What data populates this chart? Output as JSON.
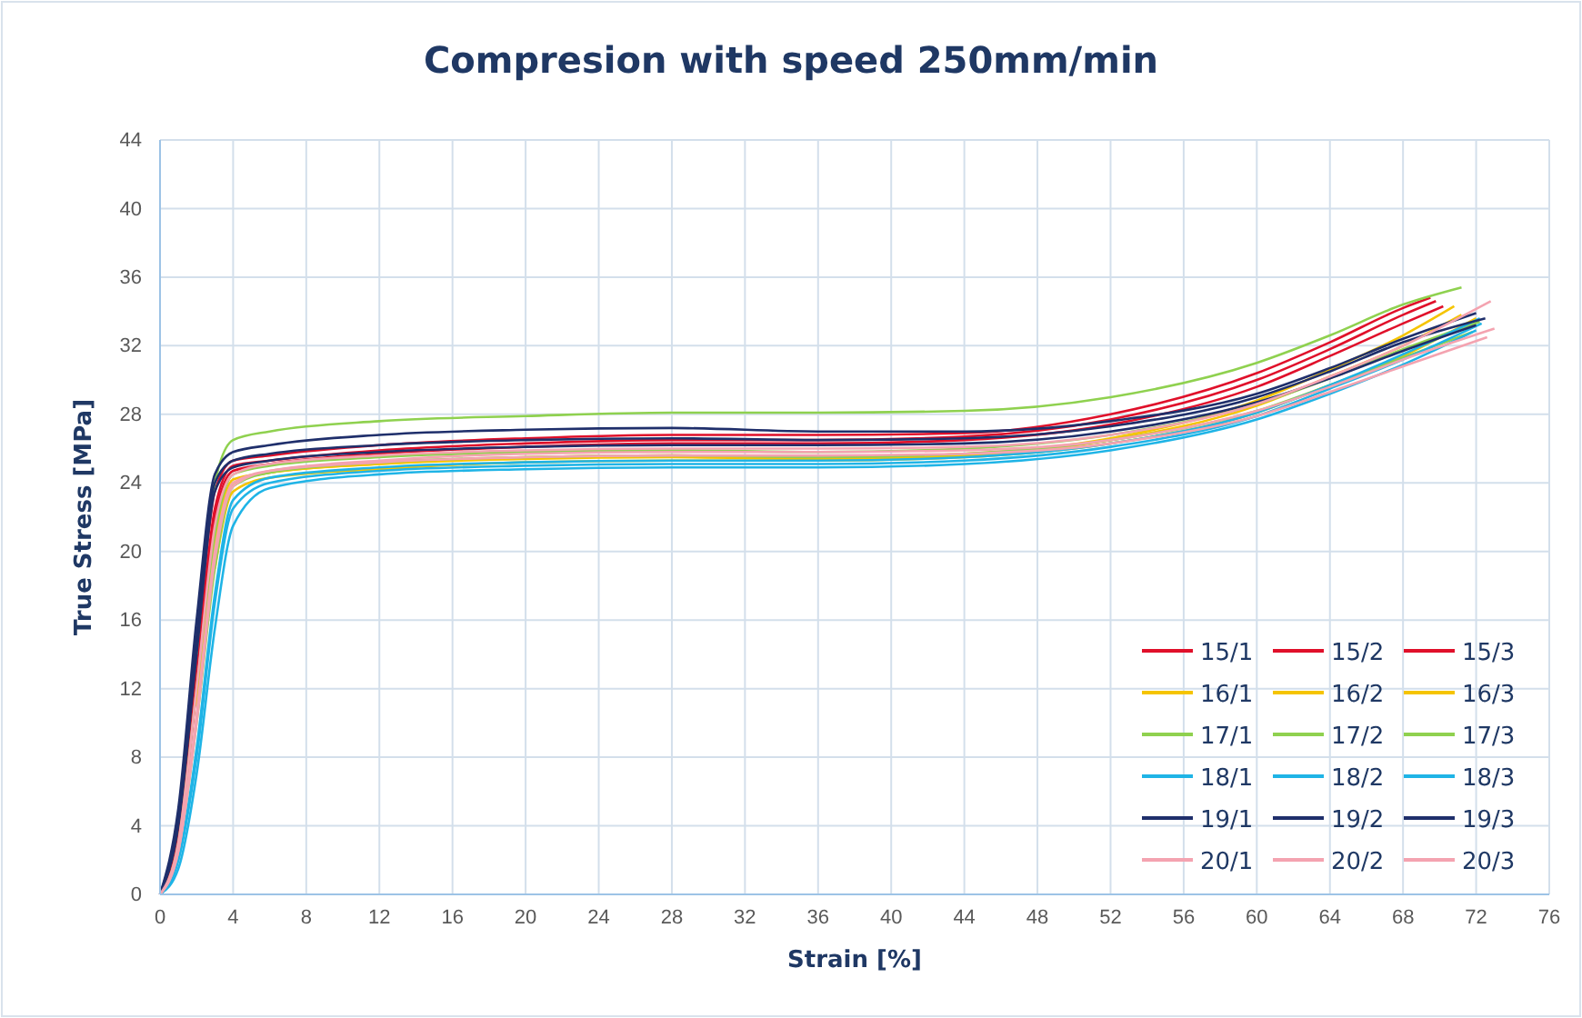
{
  "chart_data": {
    "type": "line",
    "title": "Compresion with speed 250mm/min",
    "xlabel": "Strain [%]",
    "ylabel": "True Stress [MPa]",
    "xlim": [
      0,
      76
    ],
    "xticks": [
      0,
      4,
      8,
      12,
      16,
      20,
      24,
      28,
      32,
      36,
      40,
      44,
      48,
      52,
      56,
      60,
      64,
      68,
      72,
      76
    ],
    "ylim": [
      0,
      44
    ],
    "yticks": [
      0,
      4,
      8,
      12,
      16,
      20,
      24,
      28,
      32,
      36,
      40,
      44
    ],
    "grid": true,
    "legend": "bottom right",
    "line_style": "solid",
    "marker": "none",
    "series": [
      {
        "name": "15/1",
        "color": "#e0102a",
        "x": [
          0,
          1,
          2,
          3,
          4,
          6,
          12,
          20,
          28,
          36,
          44,
          52,
          60,
          64,
          68,
          69.5
        ],
        "values": [
          0,
          4,
          14,
          23.5,
          25.3,
          25.6,
          26.2,
          26.6,
          26.8,
          26.8,
          26.9,
          28,
          30.4,
          32.2,
          34.2,
          34.8
        ]
      },
      {
        "name": "15/2",
        "color": "#e0102a",
        "x": [
          0,
          1,
          2,
          3,
          4,
          6,
          12,
          20,
          28,
          36,
          44,
          52,
          60,
          64,
          68,
          69.8
        ],
        "values": [
          0,
          3.5,
          13,
          22.5,
          25,
          25.3,
          25.9,
          26.3,
          26.5,
          26.5,
          26.7,
          27.7,
          30,
          31.8,
          33.8,
          34.6
        ]
      },
      {
        "name": "15/3",
        "color": "#e0102a",
        "x": [
          0,
          1,
          2,
          3,
          4,
          6,
          12,
          20,
          28,
          36,
          44,
          52,
          60,
          64,
          68,
          70.2
        ],
        "values": [
          0,
          3,
          12,
          22,
          24.7,
          25.1,
          25.7,
          26.1,
          26.3,
          26.3,
          26.5,
          27.4,
          29.6,
          31.4,
          33.3,
          34.3
        ]
      },
      {
        "name": "16/1",
        "color": "#f5c400",
        "x": [
          2,
          3,
          4,
          6,
          12,
          20,
          28,
          36,
          44,
          52,
          60,
          64,
          68,
          70.8
        ],
        "values": [
          11,
          20,
          24,
          24.6,
          25.1,
          25.5,
          25.6,
          25.5,
          25.7,
          26.6,
          28.8,
          30.6,
          32.6,
          34.3
        ]
      },
      {
        "name": "16/2",
        "color": "#f5c400",
        "x": [
          3,
          4,
          6,
          12,
          20,
          28,
          36,
          44,
          52,
          60,
          64,
          68,
          72
        ],
        "values": [
          19,
          23.5,
          24.3,
          24.8,
          25.2,
          25.3,
          25.3,
          25.5,
          26.3,
          28.1,
          29.7,
          31.4,
          33.6
        ]
      },
      {
        "name": "16/3",
        "color": "#f5c400",
        "x": [
          2,
          3,
          4,
          6,
          12,
          20,
          28,
          36,
          44,
          52,
          60,
          64,
          68,
          71.2
        ],
        "values": [
          11,
          20.5,
          24.2,
          24.6,
          25.1,
          25.4,
          25.5,
          25.4,
          25.6,
          26.5,
          28.5,
          30.2,
          32,
          33.8
        ]
      },
      {
        "name": "17/1",
        "color": "#8fd14f",
        "x": [
          2,
          3,
          4,
          6,
          12,
          20,
          28,
          36,
          44,
          52,
          60,
          64,
          68,
          71.2
        ],
        "values": [
          14,
          24,
          26.5,
          27,
          27.6,
          27.9,
          28.1,
          28.1,
          28.2,
          29,
          31,
          32.6,
          34.4,
          35.4
        ]
      },
      {
        "name": "17/2",
        "color": "#8fd14f",
        "x": [
          0,
          1,
          2,
          3,
          4,
          6,
          12,
          20,
          28,
          36,
          44,
          52,
          60,
          64,
          68,
          72.2
        ],
        "values": [
          0,
          3,
          12,
          21,
          24.5,
          25,
          25.5,
          25.8,
          25.9,
          25.8,
          26,
          26.8,
          28.6,
          30.1,
          31.8,
          33.4
        ]
      },
      {
        "name": "17/3",
        "color": "#8fd14f",
        "x": [
          0,
          1,
          2,
          3,
          4,
          6,
          12,
          20,
          28,
          36,
          44,
          52,
          60,
          64,
          68,
          71.8
        ],
        "values": [
          0,
          2.5,
          10,
          19,
          23.8,
          24.6,
          25.2,
          25.5,
          25.6,
          25.5,
          25.7,
          26.5,
          28.2,
          29.7,
          31.3,
          32.8
        ]
      },
      {
        "name": "18/1",
        "color": "#1fb4e6",
        "x": [
          0,
          1,
          2,
          3,
          4,
          6,
          12,
          20,
          28,
          36,
          44,
          52,
          60,
          64,
          68,
          72.3
        ],
        "values": [
          0,
          2,
          8,
          17,
          22.5,
          24,
          24.7,
          25,
          25.1,
          25.1,
          25.3,
          26.1,
          27.9,
          29.5,
          31.2,
          33.3
        ]
      },
      {
        "name": "18/2",
        "color": "#1fb4e6",
        "x": [
          0,
          1,
          2,
          3,
          4,
          6,
          12,
          20,
          28,
          36,
          44,
          52,
          60,
          64,
          68,
          72
        ],
        "values": [
          0,
          1.5,
          7,
          15.5,
          21.5,
          23.7,
          24.5,
          24.8,
          24.9,
          24.9,
          25.1,
          25.9,
          27.7,
          29.2,
          30.9,
          32.9
        ]
      },
      {
        "name": "18/3",
        "color": "#1fb4e6",
        "x": [
          0,
          1,
          2,
          3,
          4,
          6,
          12,
          20,
          28,
          36,
          44,
          52,
          60,
          64,
          68,
          72.2
        ],
        "values": [
          0,
          2,
          8.5,
          17.5,
          23,
          24.3,
          24.9,
          25.2,
          25.3,
          25.3,
          25.5,
          26.3,
          28.1,
          29.7,
          31.5,
          33.6
        ]
      },
      {
        "name": "19/1",
        "color": "#1f2f6b",
        "x": [
          0,
          1,
          2,
          3,
          4,
          6,
          12,
          20,
          28,
          36,
          44,
          52,
          60,
          64,
          68,
          72
        ],
        "values": [
          0,
          5,
          16,
          24.5,
          25.8,
          26.2,
          26.8,
          27.1,
          27.2,
          27,
          27,
          27.6,
          29.2,
          30.7,
          32.4,
          33.9
        ]
      },
      {
        "name": "19/2",
        "color": "#1f2f6b",
        "x": [
          0,
          1,
          2,
          3,
          4,
          6,
          12,
          20,
          28,
          36,
          44,
          52,
          60,
          64,
          68,
          72.5
        ],
        "values": [
          0,
          4.5,
          15,
          24,
          25.3,
          25.7,
          26.2,
          26.5,
          26.6,
          26.5,
          26.6,
          27.3,
          29,
          30.5,
          32.2,
          33.6
        ]
      },
      {
        "name": "19/3",
        "color": "#1f2f6b",
        "x": [
          0,
          1,
          2,
          3,
          4,
          6,
          12,
          20,
          28,
          36,
          44,
          52,
          60,
          64,
          68,
          72
        ],
        "values": [
          0,
          4,
          14,
          23.5,
          24.9,
          25.3,
          25.8,
          26.1,
          26.2,
          26.2,
          26.3,
          27,
          28.7,
          30.1,
          31.7,
          33.2
        ]
      },
      {
        "name": "20/1",
        "color": "#f4a3b0",
        "x": [
          0,
          1,
          2,
          3,
          4,
          6,
          12,
          20,
          28,
          36,
          44,
          52,
          60,
          64,
          68,
          72.8
        ],
        "values": [
          0,
          3,
          12,
          21.5,
          24.5,
          25.1,
          25.6,
          25.9,
          26,
          26,
          26.1,
          26.8,
          28.6,
          30.2,
          32,
          34.6
        ]
      },
      {
        "name": "20/2",
        "color": "#f4a3b0",
        "x": [
          0,
          1,
          2,
          3,
          4,
          6,
          12,
          20,
          28,
          36,
          44,
          52,
          60,
          64,
          68,
          73
        ],
        "values": [
          0,
          2.5,
          10,
          19.5,
          23.8,
          24.7,
          25.3,
          25.7,
          25.8,
          25.8,
          25.9,
          26.5,
          28.2,
          29.6,
          31.2,
          33
        ]
      },
      {
        "name": "20/3",
        "color": "#f4a3b0",
        "x": [
          0,
          1,
          2,
          3,
          4,
          6,
          12,
          20,
          28,
          36,
          44,
          52,
          60,
          64,
          68,
          72.6
        ],
        "values": [
          0,
          2.5,
          10.5,
          20,
          24,
          24.7,
          25.2,
          25.5,
          25.6,
          25.6,
          25.7,
          26.3,
          27.9,
          29.3,
          30.8,
          32.5
        ]
      }
    ]
  }
}
